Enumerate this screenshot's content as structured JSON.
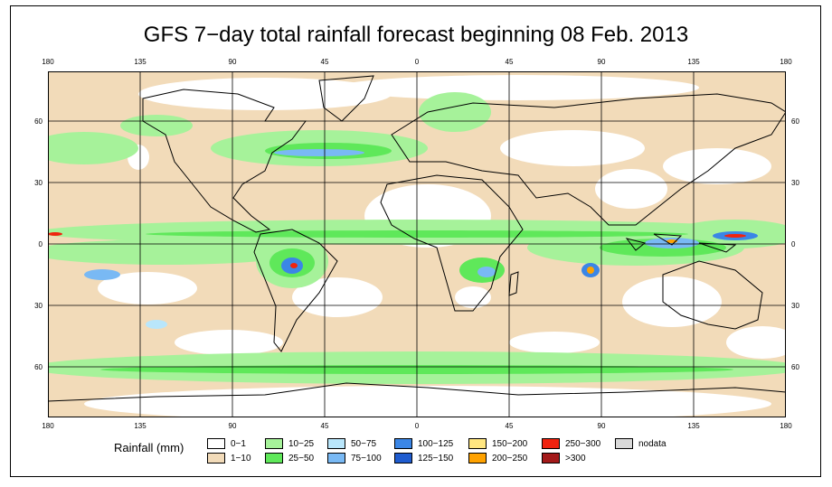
{
  "title": "GFS 7−day total rainfall forecast beginning 08 Feb. 2013",
  "lon_ticks": [
    "180",
    "135",
    "90",
    "45",
    "0",
    "45",
    "90",
    "135",
    "180"
  ],
  "lat_ticks": [
    "60",
    "30",
    "0",
    "30",
    "60"
  ],
  "legend": {
    "title": "Rainfall (mm)",
    "items": [
      {
        "label": "0−1",
        "color": "#ffffff"
      },
      {
        "label": "1−10",
        "color": "#f2dbb9"
      },
      {
        "label": "10−25",
        "color": "#a6f29a"
      },
      {
        "label": "25−50",
        "color": "#5fe85a"
      },
      {
        "label": "50−75",
        "color": "#b9e6fb"
      },
      {
        "label": "75−100",
        "color": "#79b9f4"
      },
      {
        "label": "100−125",
        "color": "#3b86e6"
      },
      {
        "label": "125−150",
        "color": "#1f5ccf"
      },
      {
        "label": "150−200",
        "color": "#ffe680"
      },
      {
        "label": "200−250",
        "color": "#ffa200"
      },
      {
        "label": "250−300",
        "color": "#f0230f"
      },
      {
        "label": ">300",
        "color": "#a31a1a"
      },
      {
        "label": "nodata",
        "color": "#d9d9d9"
      }
    ]
  }
}
